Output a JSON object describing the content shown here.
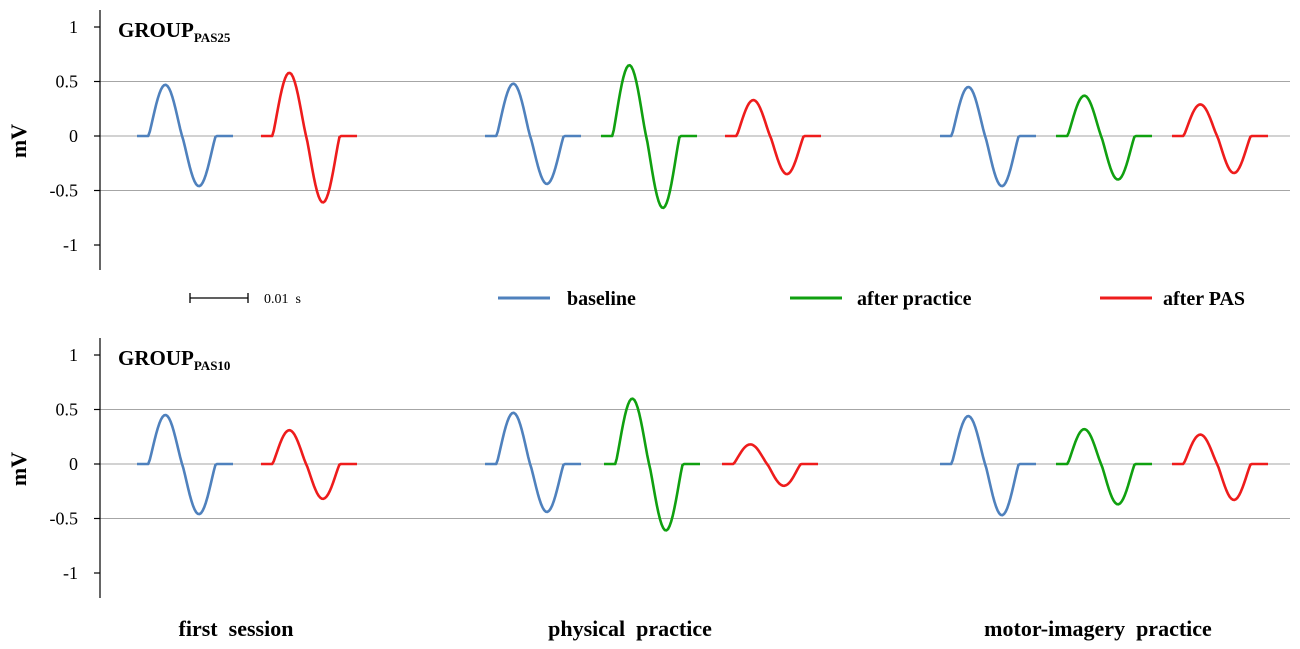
{
  "colors": {
    "baseline": "#4f81bd",
    "after_practice": "#10a010",
    "after_pas": "#ee1c1c",
    "grid": "#a6a6a6"
  },
  "chart_data": {
    "type": "line",
    "ylabel": "mV",
    "ylim": [
      -1.2,
      1.1
    ],
    "yticks": [
      1,
      0.5,
      0,
      -0.5,
      -1
    ],
    "ytick_labels": [
      "1",
      "0.5",
      "0",
      "-0.5",
      "-1"
    ],
    "grid": true,
    "legend": {
      "placement": "between panels",
      "entries": [
        {
          "key": "baseline",
          "label": "baseline"
        },
        {
          "key": "after_practice",
          "label": "after practice"
        },
        {
          "key": "after_pas",
          "label": "after PAS"
        }
      ]
    },
    "scale_bar": {
      "label": "0.01  s",
      "duration_s": 0.01
    },
    "conditions": [
      "first  session",
      "physical  practice",
      "motor-imagery  practice"
    ],
    "panels": [
      {
        "group_main": "GROUP",
        "group_sub": "PAS25",
        "waveforms": [
          {
            "condition": 0,
            "series": "baseline",
            "peak_mv": 0.47,
            "trough_mv": -0.46
          },
          {
            "condition": 0,
            "series": "after_pas",
            "peak_mv": 0.58,
            "trough_mv": -0.61
          },
          {
            "condition": 1,
            "series": "baseline",
            "peak_mv": 0.48,
            "trough_mv": -0.44
          },
          {
            "condition": 1,
            "series": "after_practice",
            "peak_mv": 0.65,
            "trough_mv": -0.66
          },
          {
            "condition": 1,
            "series": "after_pas",
            "peak_mv": 0.33,
            "trough_mv": -0.35
          },
          {
            "condition": 2,
            "series": "baseline",
            "peak_mv": 0.45,
            "trough_mv": -0.46
          },
          {
            "condition": 2,
            "series": "after_practice",
            "peak_mv": 0.37,
            "trough_mv": -0.4
          },
          {
            "condition": 2,
            "series": "after_pas",
            "peak_mv": 0.29,
            "trough_mv": -0.34
          }
        ]
      },
      {
        "group_main": "GROUP",
        "group_sub": "PAS10",
        "waveforms": [
          {
            "condition": 0,
            "series": "baseline",
            "peak_mv": 0.45,
            "trough_mv": -0.46
          },
          {
            "condition": 0,
            "series": "after_pas",
            "peak_mv": 0.31,
            "trough_mv": -0.32
          },
          {
            "condition": 1,
            "series": "baseline",
            "peak_mv": 0.47,
            "trough_mv": -0.44
          },
          {
            "condition": 1,
            "series": "after_practice",
            "peak_mv": 0.6,
            "trough_mv": -0.61
          },
          {
            "condition": 1,
            "series": "after_pas",
            "peak_mv": 0.18,
            "trough_mv": -0.2
          },
          {
            "condition": 2,
            "series": "baseline",
            "peak_mv": 0.44,
            "trough_mv": -0.47
          },
          {
            "condition": 2,
            "series": "after_practice",
            "peak_mv": 0.32,
            "trough_mv": -0.37
          },
          {
            "condition": 2,
            "series": "after_pas",
            "peak_mv": 0.27,
            "trough_mv": -0.33
          }
        ]
      }
    ]
  }
}
